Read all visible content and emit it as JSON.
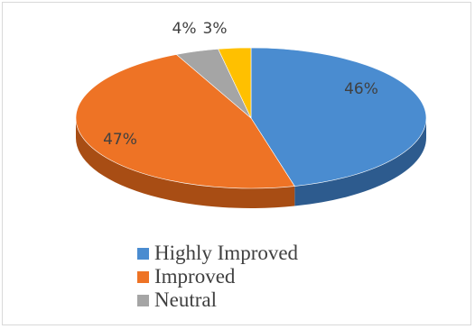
{
  "chart_data": {
    "type": "pie",
    "title": "",
    "slices": [
      {
        "label": "Highly Improved",
        "value": 46,
        "display": "46%",
        "color": "#4a8cd0",
        "side_color": "#2d5b8e"
      },
      {
        "label": "Improved",
        "value": 47,
        "display": "47%",
        "color": "#ee7325",
        "side_color": "#a84d14"
      },
      {
        "label": "Neutral",
        "value": 4,
        "display": "4%",
        "color": "#a5a5a5",
        "side_color": "#6e6e6e"
      },
      {
        "label": "",
        "value": 3,
        "display": "3%",
        "color": "#ffc000",
        "side_color": "#b98a00"
      }
    ],
    "legend": [
      {
        "label": "Highly Improved",
        "color": "#4a8cd0"
      },
      {
        "label": "Improved",
        "color": "#ee7325"
      },
      {
        "label": "Neutral",
        "color": "#a5a5a5"
      }
    ],
    "legend_position": "bottom"
  }
}
